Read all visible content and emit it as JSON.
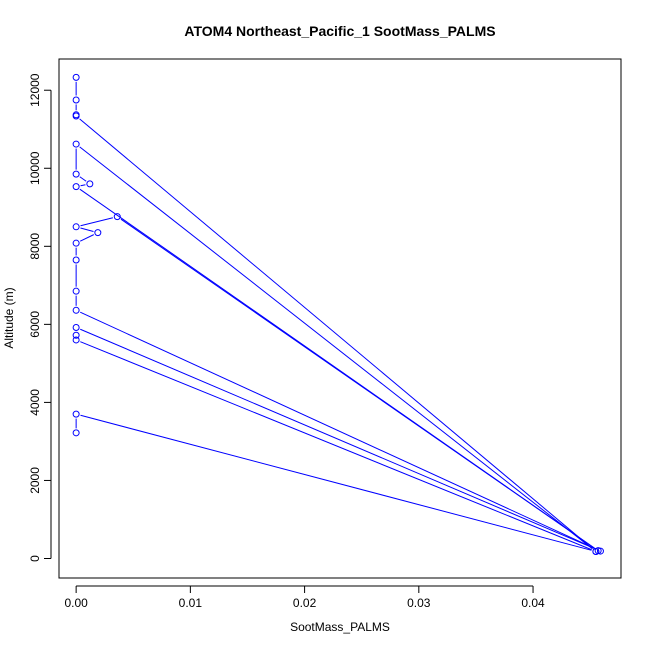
{
  "chart_data": {
    "type": "line",
    "title": "ATOM4 Northeast_Pacific_1 SootMass_PALMS",
    "xlabel": "SootMass_PALMS",
    "ylabel": "Altitude (m)",
    "xlim": [
      -0.0015,
      0.0477
    ],
    "ylim": [
      -500,
      12800
    ],
    "xticks": [
      0,
      0.01,
      0.02,
      0.03,
      0.04
    ],
    "xtick_labels": [
      "0.00",
      "0.01",
      "0.02",
      "0.03",
      "0.04"
    ],
    "yticks": [
      0,
      2000,
      4000,
      6000,
      8000,
      10000,
      12000
    ],
    "ytick_labels": [
      "0",
      "2000",
      "4000",
      "6000",
      "8000",
      "10000",
      "12000"
    ],
    "grid": false,
    "legend": "none",
    "series": [
      {
        "color": "#0000ff",
        "marker": "open-circle",
        "points": [
          {
            "x": 0.0,
            "y": 3220
          },
          {
            "x": 0.0,
            "y": 3700
          },
          {
            "x": 0.0455,
            "y": 180
          },
          {
            "x": 0.0,
            "y": 5600
          },
          {
            "x": 0.0,
            "y": 5720
          },
          {
            "x": 0.0,
            "y": 5920
          },
          {
            "x": 0.0459,
            "y": 190
          },
          {
            "x": 0.0,
            "y": 6360
          },
          {
            "x": 0.0,
            "y": 6850
          },
          {
            "x": 0.0,
            "y": 7650
          },
          {
            "x": 0.0,
            "y": 8080
          },
          {
            "x": 0.0019,
            "y": 8350
          },
          {
            "x": 0.0,
            "y": 8500
          },
          {
            "x": 0.0036,
            "y": 8760
          },
          {
            "x": 0.0457,
            "y": 200
          },
          {
            "x": 0.0,
            "y": 9530
          },
          {
            "x": 0.0012,
            "y": 9600
          },
          {
            "x": 0.0,
            "y": 9850
          },
          {
            "x": 0.0,
            "y": 10620
          },
          {
            "x": 0.0455,
            "y": 180
          },
          {
            "x": 0.0,
            "y": 11340
          },
          {
            "x": 0.0,
            "y": 11370
          },
          {
            "x": 0.0,
            "y": 11750
          },
          {
            "x": 0.0,
            "y": 12330
          }
        ]
      }
    ]
  }
}
